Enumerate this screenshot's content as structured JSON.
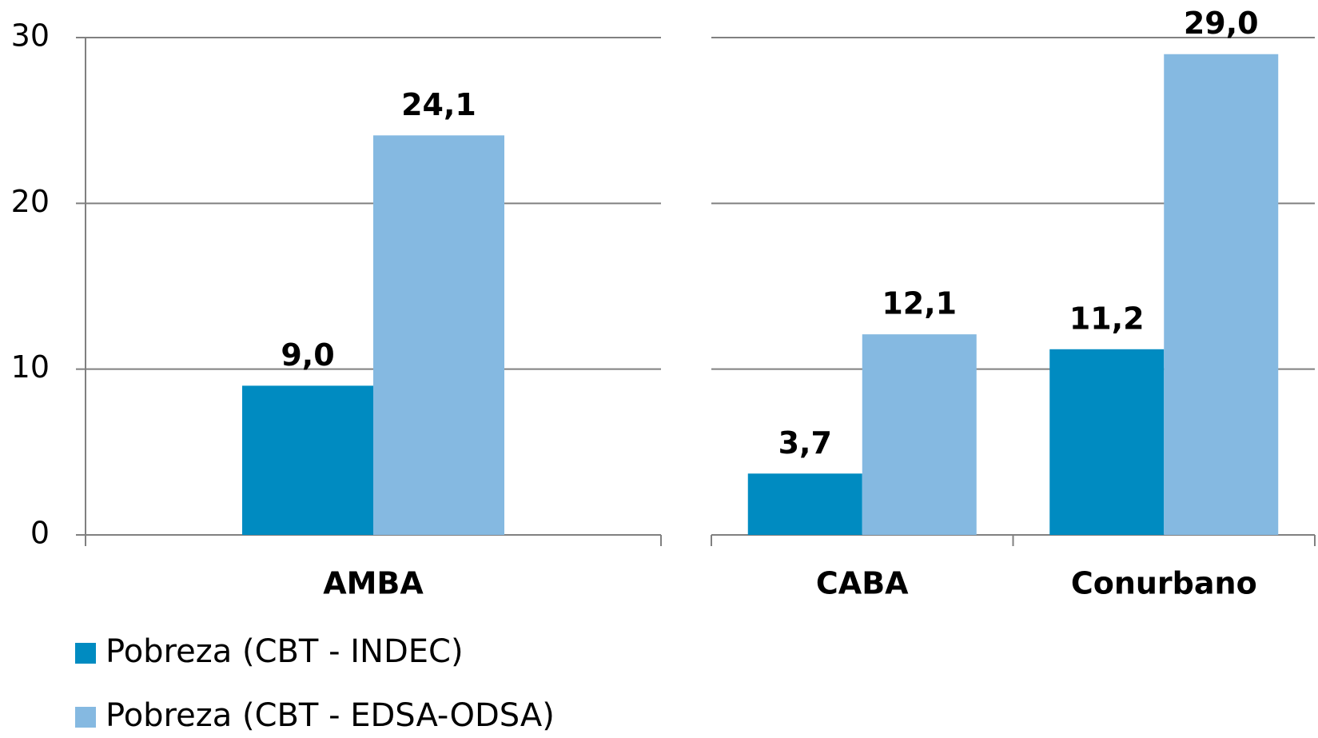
{
  "chart_data": {
    "type": "bar",
    "categories": [
      "AMBA",
      "CABA",
      "Conurbano"
    ],
    "series": [
      {
        "name": "Pobreza (CBT - INDEC)",
        "color": "#008bc1",
        "values": [
          9.0,
          3.7,
          11.2
        ],
        "value_labels": [
          "9,0",
          "3,7",
          "11,2"
        ]
      },
      {
        "name": "Pobreza (CBT - EDSA-ODSA)",
        "color": "#85b9e1",
        "values": [
          24.1,
          12.1,
          29.0
        ],
        "value_labels": [
          "24,1",
          "12,1",
          "29,0"
        ]
      }
    ],
    "ylim": [
      0,
      30
    ],
    "yticks": [
      0,
      10,
      20,
      30
    ],
    "grid": true
  }
}
